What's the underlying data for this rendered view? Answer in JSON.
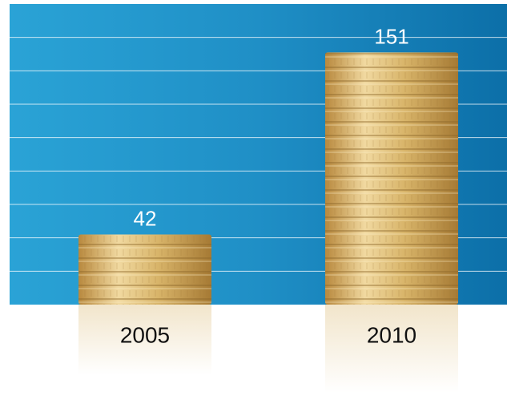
{
  "chart_data": {
    "type": "bar",
    "categories": [
      "2005",
      "2010"
    ],
    "values": [
      42,
      151
    ],
    "color": "#d9b56a",
    "ylim": [
      0,
      180
    ],
    "yticks": [
      20,
      40,
      60,
      80,
      100,
      120,
      140,
      160
    ],
    "grid": true,
    "tick_labels": false
  }
}
